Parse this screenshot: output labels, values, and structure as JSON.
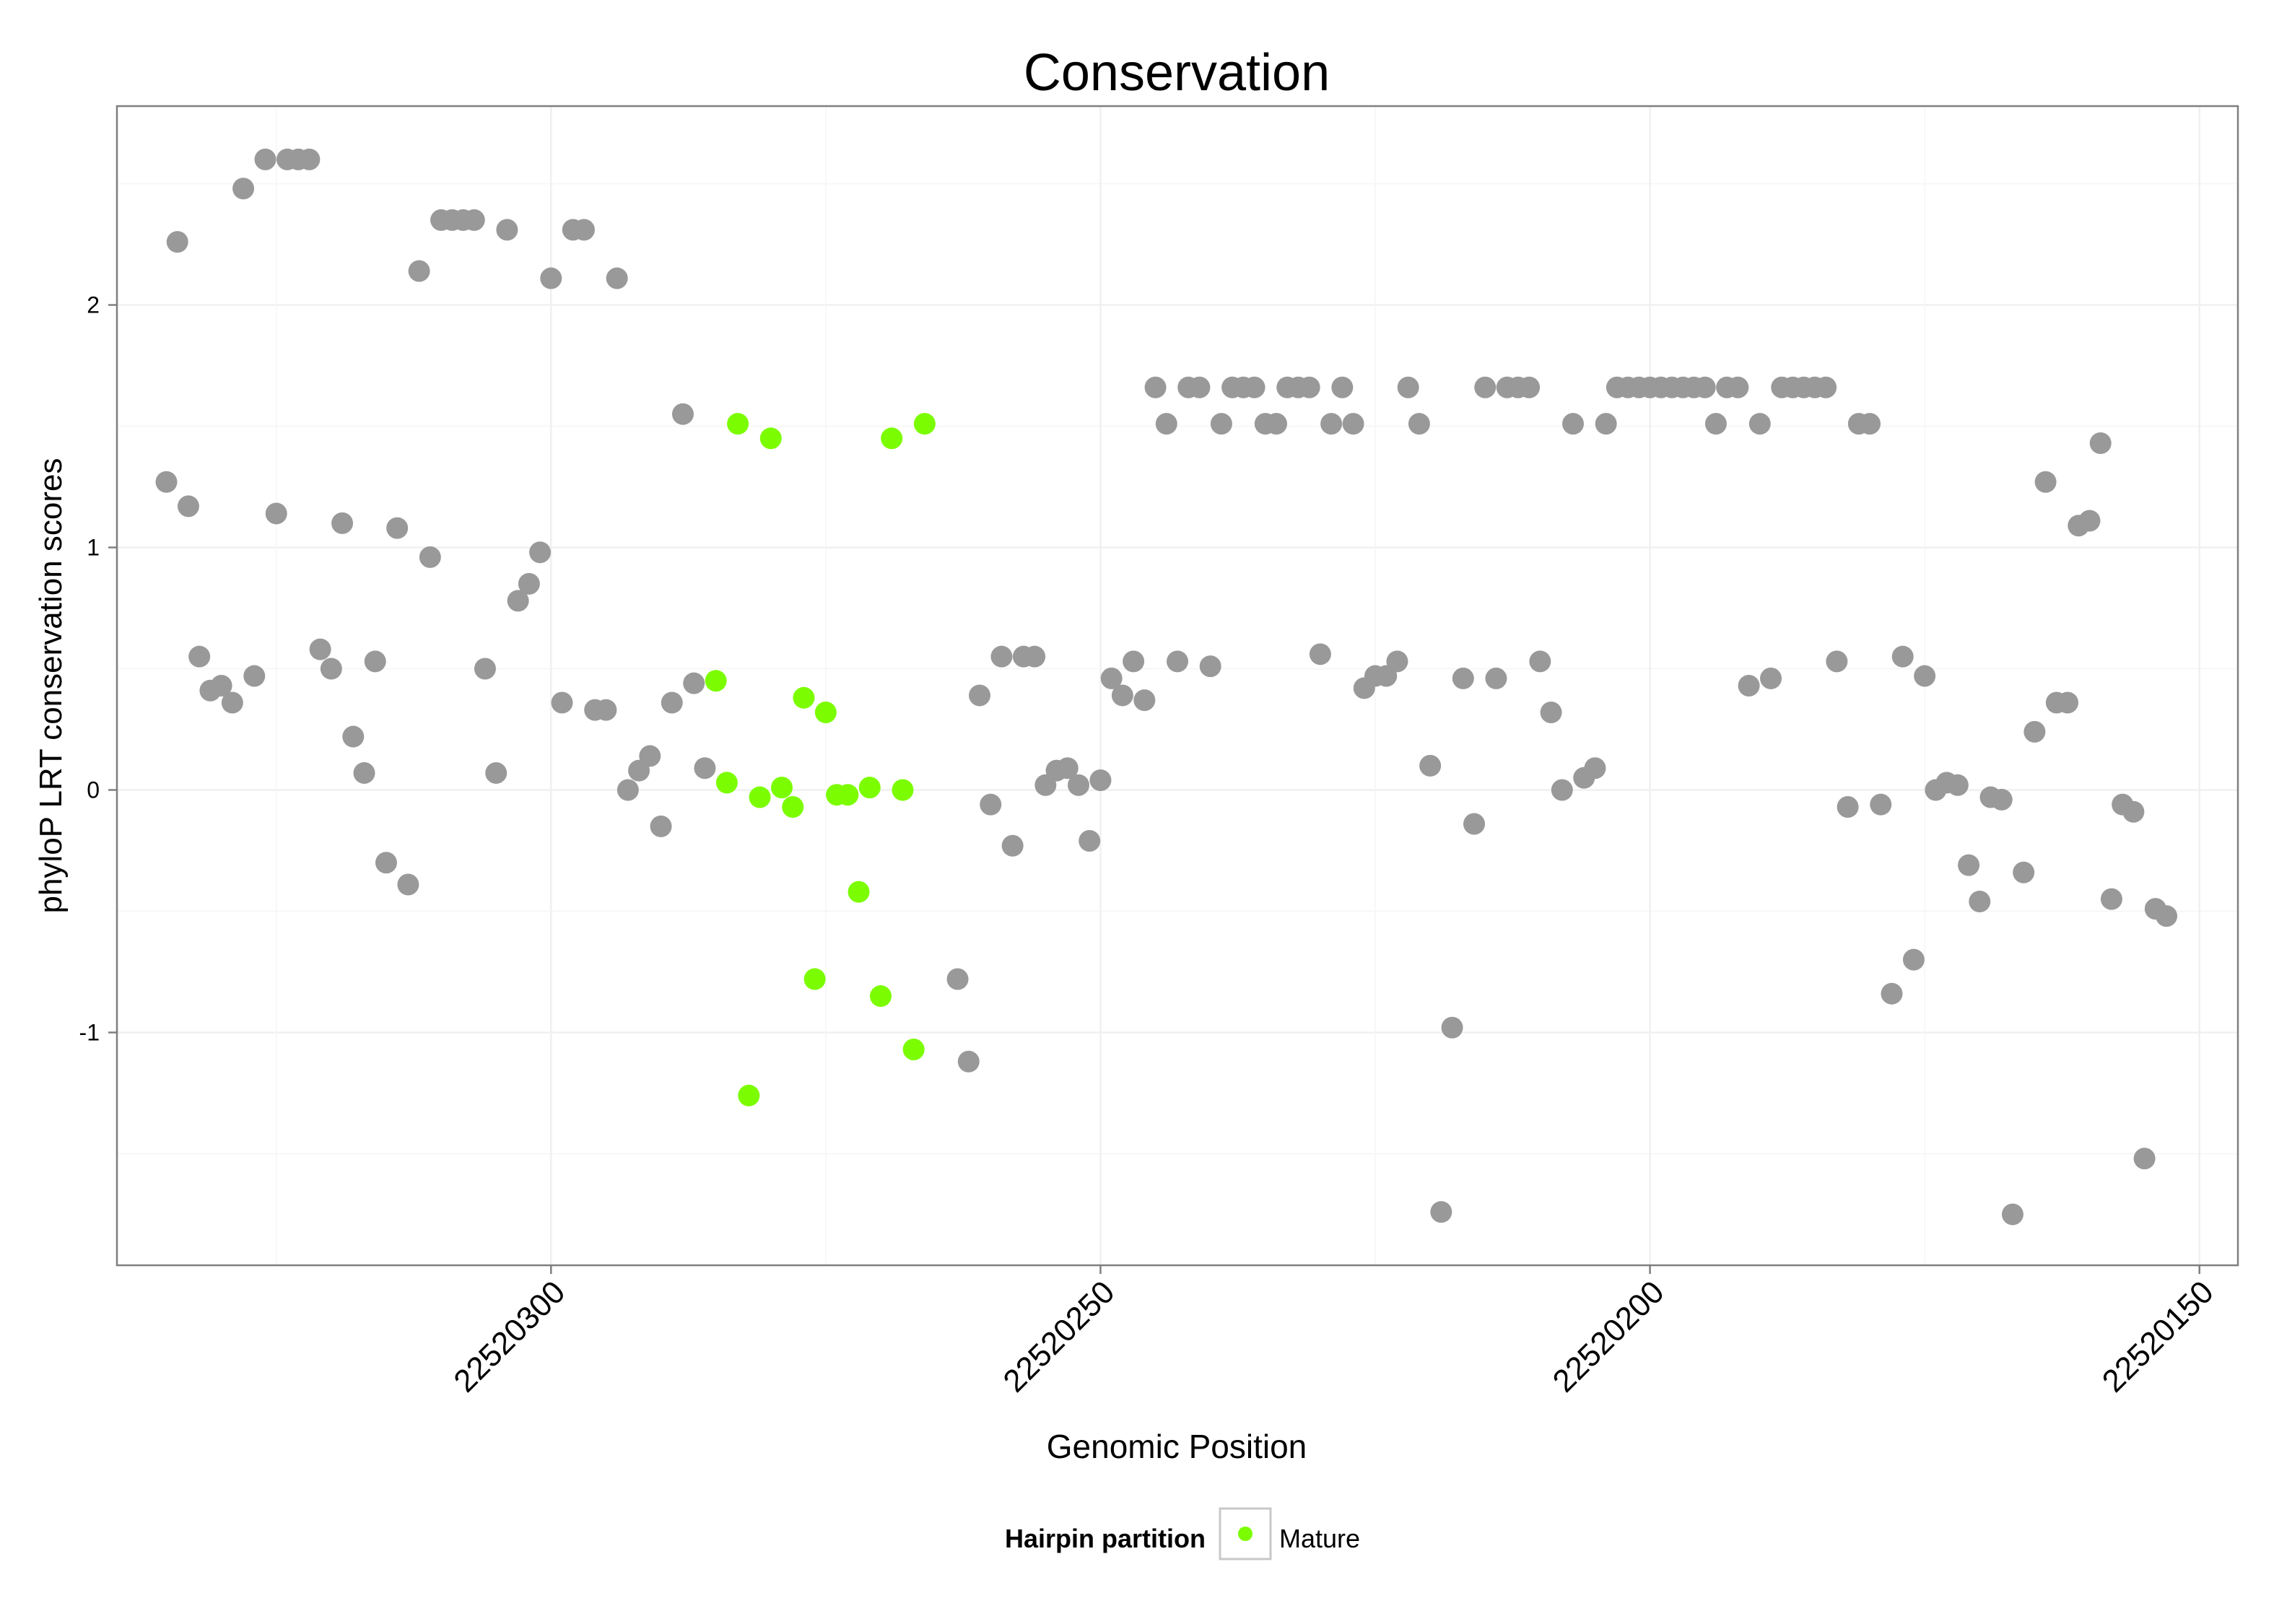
{
  "chart_data": {
    "type": "scatter",
    "title": "Conservation",
    "xlabel": "Genomic Position",
    "ylabel": "phyloP LRT conservation scores",
    "x_reversed": true,
    "xlim": [
      22520146.5,
      22520339.5
    ],
    "ylim": [
      -1.96,
      2.82
    ],
    "xticks": [
      22520300,
      22520250,
      22520200,
      22520150
    ],
    "xtick_labels": [
      "22520300",
      "22520250",
      "22520200",
      "22520150"
    ],
    "yticks": [
      -1,
      0,
      1,
      2
    ],
    "ytick_labels": [
      "-1",
      "0",
      "1",
      "2"
    ],
    "grid": true,
    "legend": {
      "title": "Hairpin partition",
      "placement": "bottom",
      "entries": [
        {
          "label": "Mature",
          "color": "#7cfc00"
        }
      ]
    },
    "colors": {
      "default": "#999999",
      "mature": "#7cfc00"
    },
    "series": [
      {
        "name": "",
        "color": "#999999",
        "points": [
          [
            22520335,
            1.27
          ],
          [
            22520334,
            2.26
          ],
          [
            22520333,
            1.17
          ],
          [
            22520332,
            0.55
          ],
          [
            22520331,
            0.41
          ],
          [
            22520330,
            0.43
          ],
          [
            22520329,
            0.36
          ],
          [
            22520328,
            2.48
          ],
          [
            22520327,
            0.47
          ],
          [
            22520326,
            2.6
          ],
          [
            22520325,
            1.14
          ],
          [
            22520324,
            2.6
          ],
          [
            22520323,
            2.6
          ],
          [
            22520322,
            2.6
          ],
          [
            22520321,
            0.58
          ],
          [
            22520320,
            0.5
          ],
          [
            22520319,
            1.1
          ],
          [
            22520318,
            0.22
          ],
          [
            22520317,
            0.07
          ],
          [
            22520316,
            0.53
          ],
          [
            22520315,
            -0.3
          ],
          [
            22520314,
            1.08
          ],
          [
            22520313,
            -0.39
          ],
          [
            22520312,
            2.14
          ],
          [
            22520311,
            0.96
          ],
          [
            22520310,
            2.35
          ],
          [
            22520309,
            2.35
          ],
          [
            22520308,
            2.35
          ],
          [
            22520307,
            2.35
          ],
          [
            22520306,
            0.5
          ],
          [
            22520305,
            0.07
          ],
          [
            22520304,
            2.31
          ],
          [
            22520303,
            0.78
          ],
          [
            22520302,
            0.85
          ],
          [
            22520301,
            0.98
          ],
          [
            22520300,
            2.11
          ],
          [
            22520299,
            0.36
          ],
          [
            22520298,
            2.31
          ],
          [
            22520297,
            2.31
          ],
          [
            22520296,
            0.33
          ],
          [
            22520295,
            0.33
          ],
          [
            22520294,
            2.11
          ],
          [
            22520293,
            0.0
          ],
          [
            22520292,
            0.08
          ],
          [
            22520291,
            0.14
          ],
          [
            22520290,
            -0.15
          ],
          [
            22520289,
            0.36
          ],
          [
            22520288,
            1.55
          ],
          [
            22520287,
            0.44
          ],
          [
            22520286,
            0.09
          ],
          [
            22520263,
            -0.78
          ],
          [
            22520262,
            -1.12
          ],
          [
            22520261,
            0.39
          ],
          [
            22520260,
            -0.06
          ],
          [
            22520259,
            0.55
          ],
          [
            22520258,
            -0.23
          ],
          [
            22520257,
            0.55
          ],
          [
            22520256,
            0.55
          ],
          [
            22520255,
            0.02
          ],
          [
            22520254,
            0.08
          ],
          [
            22520253,
            0.09
          ],
          [
            22520252,
            0.02
          ],
          [
            22520251,
            -0.21
          ],
          [
            22520250,
            0.04
          ],
          [
            22520249,
            0.46
          ],
          [
            22520248,
            0.39
          ],
          [
            22520247,
            0.53
          ],
          [
            22520246,
            0.37
          ],
          [
            22520245,
            1.66
          ],
          [
            22520244,
            1.51
          ],
          [
            22520243,
            0.53
          ],
          [
            22520242,
            1.66
          ],
          [
            22520241,
            1.66
          ],
          [
            22520240,
            0.51
          ],
          [
            22520239,
            1.51
          ],
          [
            22520238,
            1.66
          ],
          [
            22520237,
            1.66
          ],
          [
            22520236,
            1.66
          ],
          [
            22520235,
            1.51
          ],
          [
            22520234,
            1.51
          ],
          [
            22520233,
            1.66
          ],
          [
            22520232,
            1.66
          ],
          [
            22520231,
            1.66
          ],
          [
            22520230,
            0.56
          ],
          [
            22520229,
            1.51
          ],
          [
            22520228,
            1.66
          ],
          [
            22520227,
            1.51
          ],
          [
            22520226,
            0.42
          ],
          [
            22520225,
            0.47
          ],
          [
            22520224,
            0.47
          ],
          [
            22520223,
            0.53
          ],
          [
            22520222,
            1.66
          ],
          [
            22520221,
            1.51
          ],
          [
            22520220,
            0.1
          ],
          [
            22520219,
            -1.74
          ],
          [
            22520218,
            -0.98
          ],
          [
            22520217,
            0.46
          ],
          [
            22520216,
            -0.14
          ],
          [
            22520215,
            1.66
          ],
          [
            22520214,
            0.46
          ],
          [
            22520213,
            1.66
          ],
          [
            22520212,
            1.66
          ],
          [
            22520211,
            1.66
          ],
          [
            22520210,
            0.53
          ],
          [
            22520209,
            0.32
          ],
          [
            22520208,
            0.0
          ],
          [
            22520207,
            1.51
          ],
          [
            22520206,
            0.05
          ],
          [
            22520205,
            0.09
          ],
          [
            22520204,
            1.51
          ],
          [
            22520203,
            1.66
          ],
          [
            22520202,
            1.66
          ],
          [
            22520201,
            1.66
          ],
          [
            22520200,
            1.66
          ],
          [
            22520199,
            1.66
          ],
          [
            22520198,
            1.66
          ],
          [
            22520197,
            1.66
          ],
          [
            22520196,
            1.66
          ],
          [
            22520195,
            1.66
          ],
          [
            22520194,
            1.51
          ],
          [
            22520193,
            1.66
          ],
          [
            22520192,
            1.66
          ],
          [
            22520191,
            0.43
          ],
          [
            22520190,
            1.51
          ],
          [
            22520189,
            0.46
          ],
          [
            22520188,
            1.66
          ],
          [
            22520187,
            1.66
          ],
          [
            22520186,
            1.66
          ],
          [
            22520185,
            1.66
          ],
          [
            22520184,
            1.66
          ],
          [
            22520183,
            0.53
          ],
          [
            22520182,
            -0.07
          ],
          [
            22520181,
            1.51
          ],
          [
            22520180,
            1.51
          ],
          [
            22520179,
            -0.06
          ],
          [
            22520178,
            -0.84
          ],
          [
            22520177,
            0.55
          ],
          [
            22520176,
            -0.7
          ],
          [
            22520175,
            0.47
          ],
          [
            22520174,
            0.0
          ],
          [
            22520173,
            0.03
          ],
          [
            22520172,
            0.02
          ],
          [
            22520171,
            -0.31
          ],
          [
            22520170,
            -0.46
          ],
          [
            22520169,
            -0.03
          ],
          [
            22520168,
            -0.04
          ],
          [
            22520167,
            -1.75
          ],
          [
            22520166,
            -0.34
          ],
          [
            22520165,
            0.24
          ],
          [
            22520164,
            1.27
          ],
          [
            22520163,
            0.36
          ],
          [
            22520162,
            0.36
          ],
          [
            22520161,
            1.09
          ],
          [
            22520160,
            1.11
          ],
          [
            22520159,
            1.43
          ],
          [
            22520158,
            -0.45
          ],
          [
            22520157,
            -0.06
          ],
          [
            22520156,
            -0.09
          ],
          [
            22520155,
            -1.52
          ],
          [
            22520154,
            -0.49
          ],
          [
            22520153,
            -0.52
          ]
        ]
      },
      {
        "name": "Mature",
        "color": "#7cfc00",
        "points": [
          [
            22520285,
            0.45
          ],
          [
            22520284,
            0.03
          ],
          [
            22520283,
            1.51
          ],
          [
            22520282,
            -1.26
          ],
          [
            22520281,
            -0.03
          ],
          [
            22520280,
            1.45
          ],
          [
            22520279,
            0.01
          ],
          [
            22520278,
            -0.07
          ],
          [
            22520277,
            0.38
          ],
          [
            22520276,
            -0.78
          ],
          [
            22520275,
            0.32
          ],
          [
            22520274,
            -0.02
          ],
          [
            22520273,
            -0.02
          ],
          [
            22520272,
            -0.42
          ],
          [
            22520271,
            0.01
          ],
          [
            22520270,
            -0.85
          ],
          [
            22520269,
            1.45
          ],
          [
            22520268,
            0.0
          ],
          [
            22520267,
            -1.07
          ],
          [
            22520266,
            1.51
          ]
        ]
      }
    ]
  }
}
